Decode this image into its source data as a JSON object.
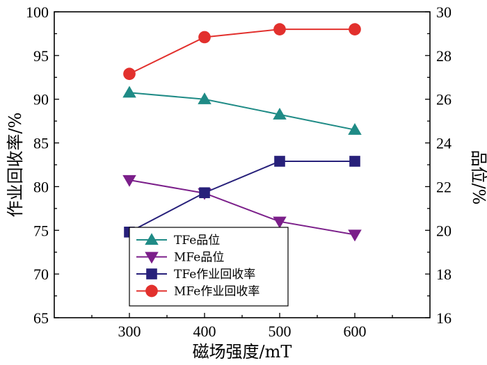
{
  "chart_data": {
    "type": "line",
    "x": [
      300,
      400,
      500,
      600
    ],
    "xlabel": "磁场强度/mT",
    "ylabel_left": "作业回收率/%",
    "ylabel_right": "品位/%",
    "xlim": [
      200,
      700
    ],
    "ylim_left": [
      65,
      100
    ],
    "ylim_right": [
      16,
      30
    ],
    "x_ticks": [
      "300",
      "400",
      "500",
      "600"
    ],
    "y_left_ticks": [
      "65",
      "70",
      "75",
      "80",
      "85",
      "90",
      "95",
      "100"
    ],
    "y_right_ticks": [
      "16",
      "18",
      "20",
      "22",
      "24",
      "26",
      "28",
      "30"
    ],
    "legend_position": "bottom-left",
    "series": [
      {
        "name": "TFe品位",
        "axis": "right",
        "values": [
          26.3,
          26.0,
          25.3,
          24.6
        ],
        "color": "#1f8b86",
        "marker": "triangle-up"
      },
      {
        "name": "MFe品位",
        "axis": "right",
        "values": [
          22.3,
          21.7,
          20.4,
          19.8
        ],
        "color": "#7b1f8a",
        "marker": "triangle-down"
      },
      {
        "name": "TFe作业回收率",
        "axis": "left",
        "values": [
          74.8,
          79.3,
          82.9,
          82.9
        ],
        "color": "#27207a",
        "marker": "square"
      },
      {
        "name": "MFe作业回收率",
        "axis": "left",
        "values": [
          92.9,
          97.1,
          98.0,
          98.0
        ],
        "color": "#e2302d",
        "marker": "circle"
      }
    ]
  }
}
